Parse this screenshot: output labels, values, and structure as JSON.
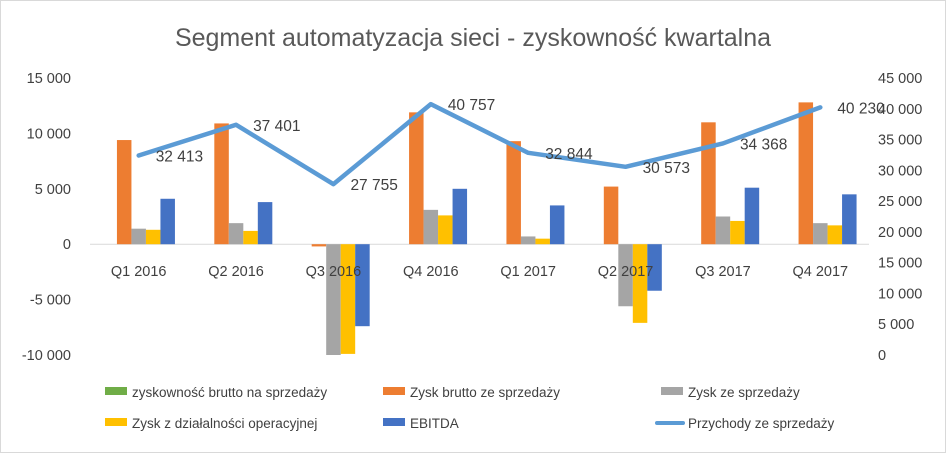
{
  "chart_data": {
    "type": "bar",
    "title": "Segment automatyzacja sieci - zyskowność kwartalna",
    "categories": [
      "Q1 2016",
      "Q2 2016",
      "Q3 2016",
      "Q4 2016",
      "Q1 2017",
      "Q2 2017",
      "Q3 2017",
      "Q4 2017"
    ],
    "y_left": {
      "min": -10000,
      "max": 15000,
      "step": 5000,
      "tick_labels": [
        "-10 000",
        "-5 000",
        "0",
        "5 000",
        "10 000",
        "15 000"
      ]
    },
    "y_right": {
      "min": 0,
      "max": 45000,
      "step": 5000,
      "tick_labels": [
        "0",
        "5 000",
        "10 000",
        "15 000",
        "20 000",
        "25 000",
        "30 000",
        "35 000",
        "40 000",
        "45 000"
      ]
    },
    "grid": false,
    "legend_position": "bottom",
    "series": [
      {
        "name": "zyskowność brutto na sprzedaży",
        "type": "bar",
        "axis": "left",
        "color": "#70ad47",
        "values": [
          0,
          0,
          0,
          0,
          0,
          0,
          0,
          0
        ]
      },
      {
        "name": "Zysk brutto ze sprzedaży",
        "type": "bar",
        "axis": "left",
        "color": "#ed7d31",
        "values": [
          9400,
          10900,
          -200,
          11900,
          9300,
          5200,
          11000,
          12800
        ]
      },
      {
        "name": "Zysk ze sprzedaży",
        "type": "bar",
        "axis": "left",
        "color": "#a5a5a5",
        "values": [
          1400,
          1900,
          -10000,
          3100,
          700,
          -5600,
          2500,
          1900
        ]
      },
      {
        "name": "Zysk z działalności operacyjnej",
        "type": "bar",
        "axis": "left",
        "color": "#ffc000",
        "values": [
          1300,
          1200,
          -9900,
          2600,
          500,
          -7100,
          2100,
          1700
        ]
      },
      {
        "name": "EBITDA",
        "type": "bar",
        "axis": "left",
        "color": "#4472c4",
        "values": [
          4100,
          3800,
          -7400,
          5000,
          3500,
          -4200,
          5100,
          4500
        ]
      },
      {
        "name": "Przychody ze sprzedaży",
        "type": "line",
        "axis": "right",
        "color": "#5b9bd5",
        "values": [
          32413,
          37401,
          27755,
          40757,
          32844,
          30573,
          34368,
          40230
        ],
        "data_labels": [
          "32 413",
          "37 401",
          "27 755",
          "40 757",
          "32 844",
          "30 573",
          "34 368",
          "40 230"
        ]
      }
    ]
  }
}
